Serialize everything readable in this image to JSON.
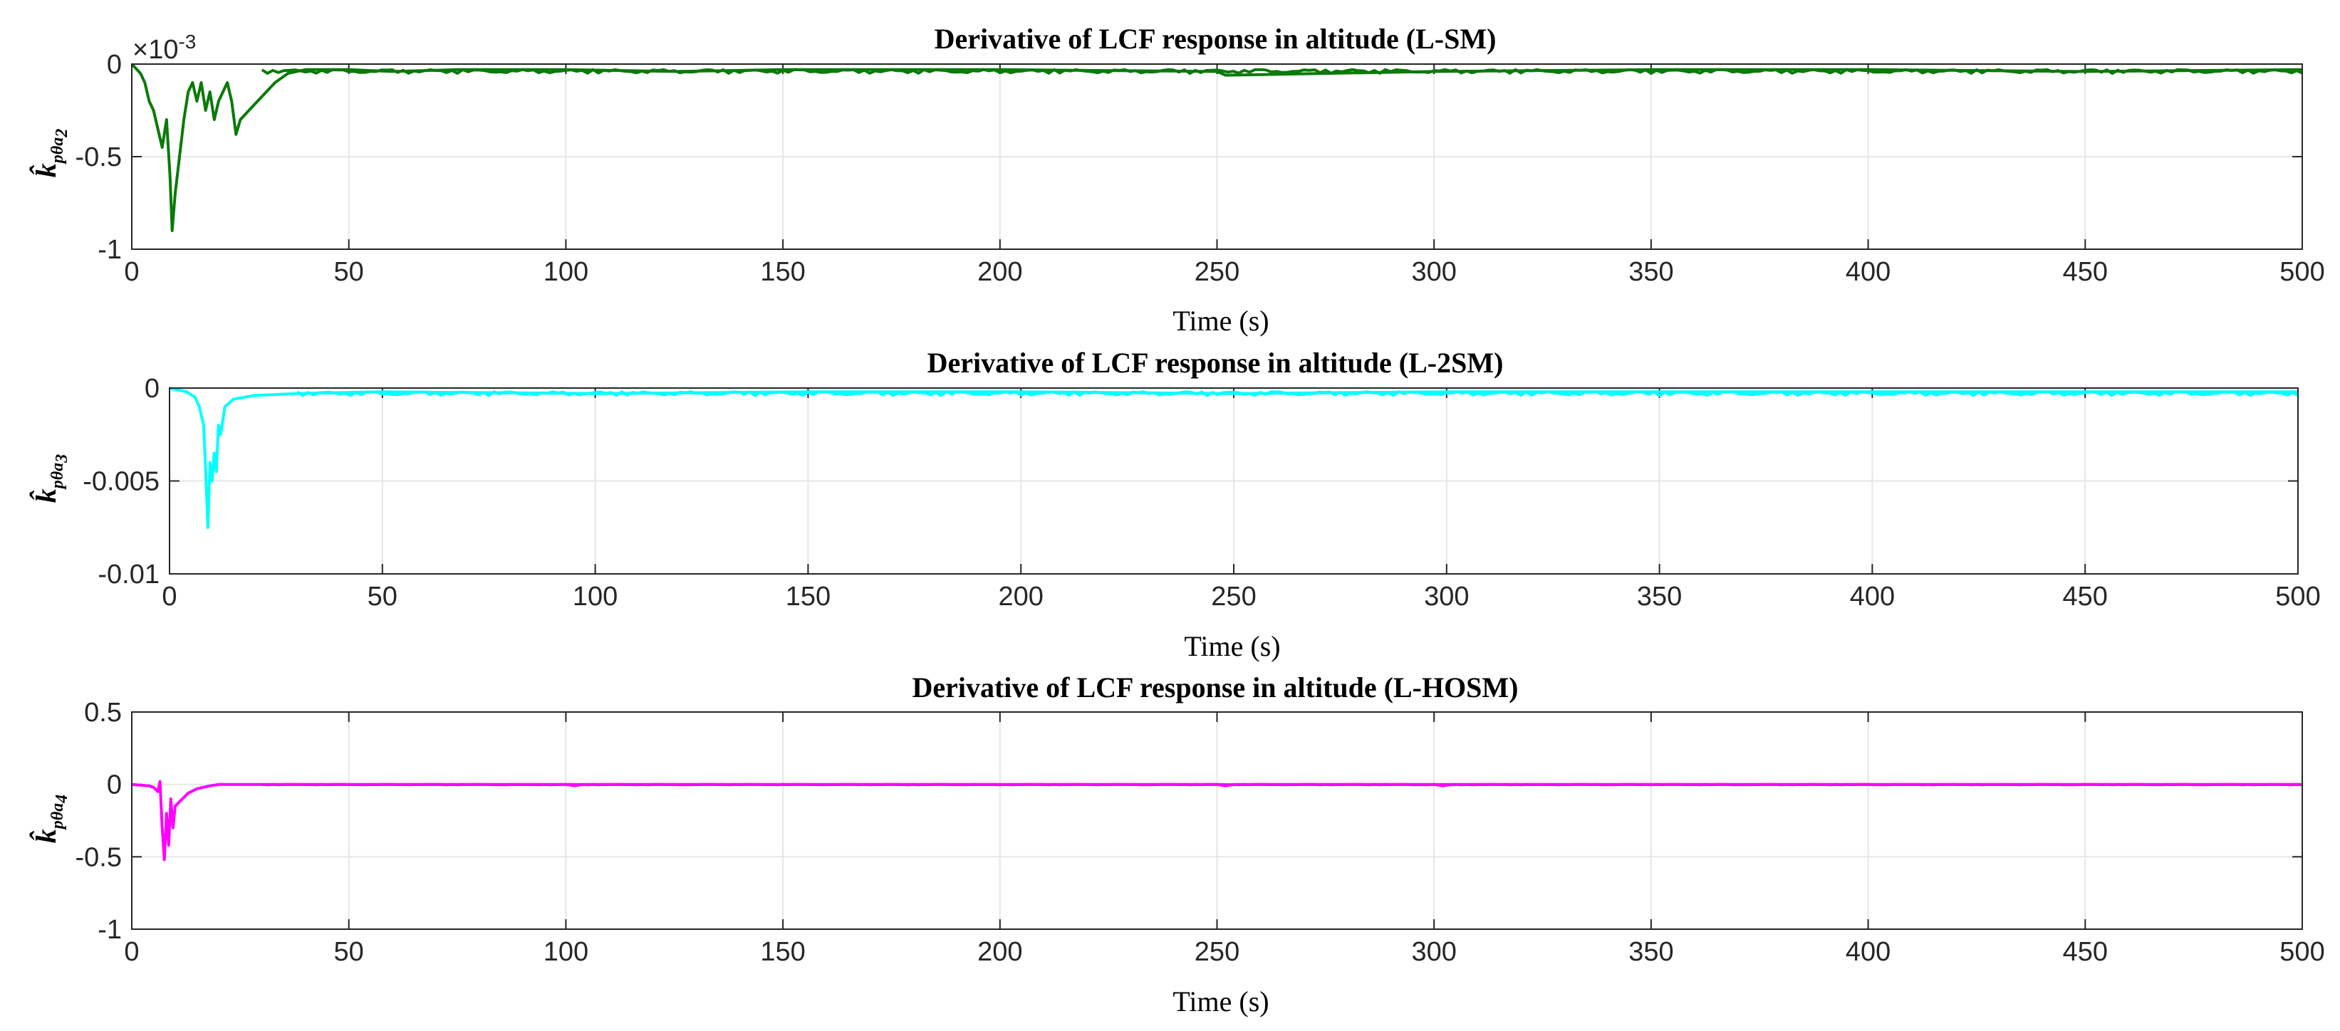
{
  "chart_data": [
    {
      "type": "line",
      "title": "Derivative of LCF response in altitude (L-SM)",
      "xlabel": "Time (s)",
      "ylabel": {
        "base": "k̂",
        "sub": "pθa",
        "subsub": "2"
      },
      "y_exponent_label": "×10",
      "y_exponent_power": "-3",
      "xlim": [
        0,
        500
      ],
      "ylim": [
        -1,
        0
      ],
      "xticks": [
        0,
        50,
        100,
        150,
        200,
        250,
        300,
        350,
        400,
        450,
        500
      ],
      "xtick_labels": [
        "0",
        "50",
        "100",
        "150",
        "200",
        "250",
        "300",
        "350",
        "400",
        "450",
        "500"
      ],
      "yticks": [
        -1,
        -0.5,
        0
      ],
      "ytick_labels": [
        "-1",
        "-0.5",
        "0"
      ],
      "grid": true,
      "color": "#0a7a0a",
      "series": [
        {
          "name": "L-SM",
          "x": [
            0,
            2,
            3,
            4,
            5,
            6,
            7,
            8,
            8.8,
            9.3,
            10,
            11,
            12,
            13,
            14,
            15,
            16,
            17,
            18,
            19,
            20,
            21,
            22,
            23,
            24,
            25,
            27,
            29,
            31,
            33,
            36,
            40,
            50,
            60,
            75,
            100,
            125,
            150,
            175,
            200,
            250,
            252,
            300,
            350,
            400,
            450,
            500
          ],
          "values": [
            0,
            -0.05,
            -0.1,
            -0.2,
            -0.25,
            -0.35,
            -0.45,
            -0.3,
            -0.6,
            -0.9,
            -0.7,
            -0.5,
            -0.3,
            -0.15,
            -0.1,
            -0.2,
            -0.1,
            -0.25,
            -0.15,
            -0.3,
            -0.2,
            -0.15,
            -0.1,
            -0.2,
            -0.38,
            -0.3,
            -0.25,
            -0.2,
            -0.15,
            -0.1,
            -0.05,
            -0.03,
            -0.03,
            -0.04,
            -0.03,
            -0.03,
            -0.04,
            -0.03,
            -0.03,
            -0.03,
            -0.04,
            -0.06,
            -0.04,
            -0.03,
            -0.03,
            -0.04,
            -0.03
          ]
        }
      ]
    },
    {
      "type": "line",
      "title": "Derivative of LCF response in altitude (L-2SM)",
      "xlabel": "Time (s)",
      "ylabel": {
        "base": "k̂",
        "sub": "pθa",
        "subsub": "3"
      },
      "xlim": [
        0,
        500
      ],
      "ylim": [
        -0.01,
        0
      ],
      "xticks": [
        0,
        50,
        100,
        150,
        200,
        250,
        300,
        350,
        400,
        450,
        500
      ],
      "xtick_labels": [
        "0",
        "50",
        "100",
        "150",
        "200",
        "250",
        "300",
        "350",
        "400",
        "450",
        "500"
      ],
      "yticks": [
        -0.01,
        -0.005,
        0
      ],
      "ytick_labels": [
        "-0.01",
        "-0.005",
        "0"
      ],
      "grid": true,
      "color": "#00ffff",
      "series": [
        {
          "name": "L-2SM",
          "x": [
            0,
            4,
            6,
            7,
            8,
            8.5,
            9,
            9.5,
            10,
            10.5,
            11,
            11.5,
            12,
            13,
            15,
            20,
            30,
            50,
            100,
            150,
            200,
            250,
            300,
            350,
            400,
            450,
            500
          ],
          "values": [
            0,
            -0.0002,
            -0.0005,
            -0.001,
            -0.002,
            -0.0045,
            -0.0075,
            -0.004,
            -0.005,
            -0.0035,
            -0.0045,
            -0.002,
            -0.0025,
            -0.001,
            -0.0006,
            -0.0004,
            -0.0003,
            -0.0002,
            -0.0003,
            -0.0002,
            -0.0002,
            -0.0003,
            -0.0002,
            -0.0002,
            -0.0002,
            -0.0002,
            -0.0002
          ]
        }
      ]
    },
    {
      "type": "line",
      "title": "Derivative of LCF response in altitude (L-HOSM)",
      "xlabel": "Time (s)",
      "ylabel": {
        "base": "k̂",
        "sub": "pθa",
        "subsub": "4"
      },
      "xlim": [
        0,
        500
      ],
      "ylim": [
        -1,
        0.5
      ],
      "xticks": [
        0,
        50,
        100,
        150,
        200,
        250,
        300,
        350,
        400,
        450,
        500
      ],
      "xtick_labels": [
        "0",
        "50",
        "100",
        "150",
        "200",
        "250",
        "300",
        "350",
        "400",
        "450",
        "500"
      ],
      "yticks": [
        -1,
        -0.5,
        0,
        0.5
      ],
      "ytick_labels": [
        "-1",
        "-0.5",
        "0",
        "0.5"
      ],
      "grid": true,
      "color": "#ff00ff",
      "series": [
        {
          "name": "L-HOSM",
          "x": [
            0,
            4,
            5,
            6,
            6.5,
            7,
            7.5,
            8,
            8.5,
            9,
            9.5,
            10,
            11,
            12,
            13,
            15,
            18,
            20,
            50,
            100,
            102,
            104,
            150,
            200,
            250,
            252,
            254,
            300,
            302,
            304,
            350,
            400,
            450,
            500
          ],
          "values": [
            0,
            -0.01,
            -0.02,
            -0.05,
            0.02,
            -0.3,
            -0.52,
            -0.2,
            -0.42,
            -0.1,
            -0.3,
            -0.15,
            -0.12,
            -0.09,
            -0.06,
            -0.03,
            -0.01,
            0,
            0,
            0,
            -0.01,
            0,
            0,
            0,
            0,
            -0.01,
            0,
            0,
            -0.01,
            0,
            0,
            0,
            0,
            0
          ]
        }
      ]
    }
  ]
}
